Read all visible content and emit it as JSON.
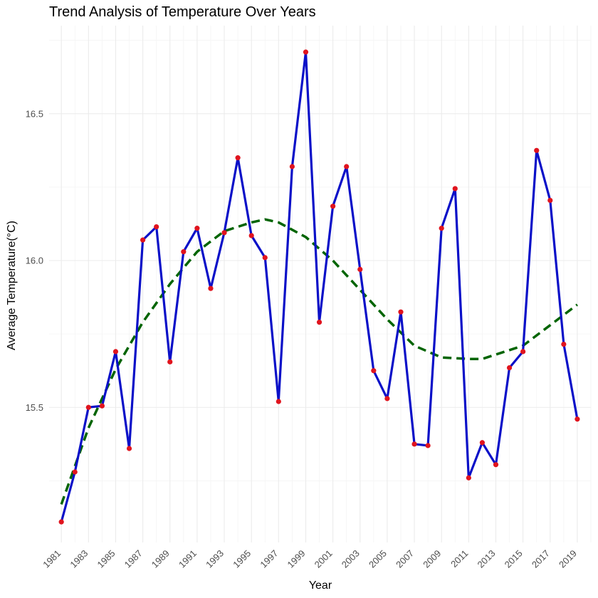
{
  "chart_data": {
    "type": "line",
    "title": "Trend Analysis of Temperature Over Years",
    "xlabel": "Year",
    "ylabel": "Average Temperature(°C)",
    "xlim": [
      1980.1,
      2020.0
    ],
    "ylim": [
      15.04,
      16.8
    ],
    "x_ticks": [
      1981,
      1983,
      1985,
      1987,
      1989,
      1991,
      1993,
      1995,
      1997,
      1999,
      2001,
      2003,
      2005,
      2007,
      2009,
      2011,
      2013,
      2015,
      2017,
      2019
    ],
    "y_ticks": [
      15.5,
      16.0,
      16.5
    ],
    "x_minor_ticks": [
      1982,
      1984,
      1986,
      1988,
      1990,
      1992,
      1994,
      1996,
      1998,
      2000,
      2002,
      2004,
      2006,
      2008,
      2010,
      2012,
      2014,
      2016,
      2018,
      2020
    ],
    "y_minor_ticks": [
      15.25,
      15.75,
      16.25,
      16.75
    ],
    "grid": true,
    "series": [
      {
        "kind": "data",
        "line_color": "#0a10c8",
        "point_color": "#e0141e",
        "x": [
          1981,
          1982,
          1983,
          1984,
          1985,
          1986,
          1987,
          1988,
          1989,
          1990,
          1991,
          1992,
          1993,
          1994,
          1995,
          1996,
          1997,
          1998,
          1999,
          2000,
          2001,
          2002,
          2003,
          2004,
          2005,
          2006,
          2007,
          2008,
          2009,
          2010,
          2011,
          2012,
          2013,
          2014,
          2015,
          2016,
          2017,
          2018,
          2019
        ],
        "y": [
          15.11,
          15.28,
          15.5,
          15.505,
          15.69,
          15.36,
          16.07,
          16.115,
          15.655,
          16.03,
          16.11,
          15.905,
          16.095,
          16.35,
          16.085,
          16.01,
          15.52,
          16.32,
          16.71,
          15.79,
          16.185,
          16.32,
          15.97,
          15.625,
          15.53,
          15.825,
          15.375,
          15.37,
          16.11,
          16.245,
          15.26,
          15.38,
          15.305,
          15.635,
          15.69,
          16.375,
          16.205,
          15.715,
          15.46
        ]
      },
      {
        "kind": "trend",
        "line_color": "#006400",
        "line_style": "dashed",
        "x": [
          1981,
          1983,
          1985,
          1987,
          1989,
          1991,
          1993,
          1995,
          1996,
          1997,
          1999,
          2001,
          2003,
          2005,
          2007,
          2009,
          2011,
          2012,
          2013,
          2015,
          2017,
          2019
        ],
        "y": [
          15.17,
          15.43,
          15.63,
          15.79,
          15.92,
          16.03,
          16.1,
          16.13,
          16.14,
          16.13,
          16.08,
          16.0,
          15.9,
          15.8,
          15.71,
          15.67,
          15.665,
          15.665,
          15.68,
          15.71,
          15.78,
          15.85
        ]
      }
    ]
  }
}
